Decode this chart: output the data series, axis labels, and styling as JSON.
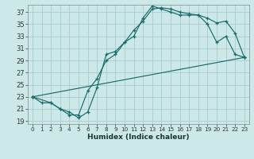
{
  "xlabel": "Humidex (Indice chaleur)",
  "background_color": "#cce8e8",
  "grid_color": "#aacccc",
  "line_color": "#1a6b6b",
  "xlim": [
    -0.5,
    23.5
  ],
  "ylim": [
    18.5,
    38.2
  ],
  "xticks": [
    0,
    1,
    2,
    3,
    4,
    5,
    6,
    7,
    8,
    9,
    10,
    11,
    12,
    13,
    14,
    15,
    16,
    17,
    18,
    19,
    20,
    21,
    22,
    23
  ],
  "yticks": [
    19,
    21,
    23,
    25,
    27,
    29,
    31,
    33,
    35,
    37
  ],
  "curve1_x": [
    0,
    1,
    2,
    3,
    4,
    5,
    6,
    7,
    8,
    9,
    10,
    11,
    12,
    13,
    14,
    15,
    16,
    17,
    18,
    19,
    20,
    21,
    22,
    23
  ],
  "curve1_y": [
    23,
    22,
    22,
    21,
    20,
    20,
    24,
    26,
    29,
    30,
    32,
    33,
    36,
    38,
    37.5,
    37,
    36.5,
    36.5,
    36.5,
    35,
    32,
    33,
    30,
    29.5
  ],
  "curve2_x": [
    0,
    2,
    3,
    4,
    5,
    6,
    7,
    8,
    9,
    10,
    11,
    12,
    13,
    14,
    15,
    16,
    17,
    18,
    19,
    20,
    21,
    22,
    23
  ],
  "curve2_y": [
    23,
    22,
    21,
    20.5,
    19.5,
    20.5,
    24.5,
    30,
    30.5,
    32,
    34,
    35.5,
    37.5,
    37.7,
    37.5,
    37,
    36.7,
    36.5,
    36,
    35.2,
    35.5,
    33.5,
    29.5
  ],
  "curve3_x": [
    0,
    23
  ],
  "curve3_y": [
    23,
    29.5
  ]
}
